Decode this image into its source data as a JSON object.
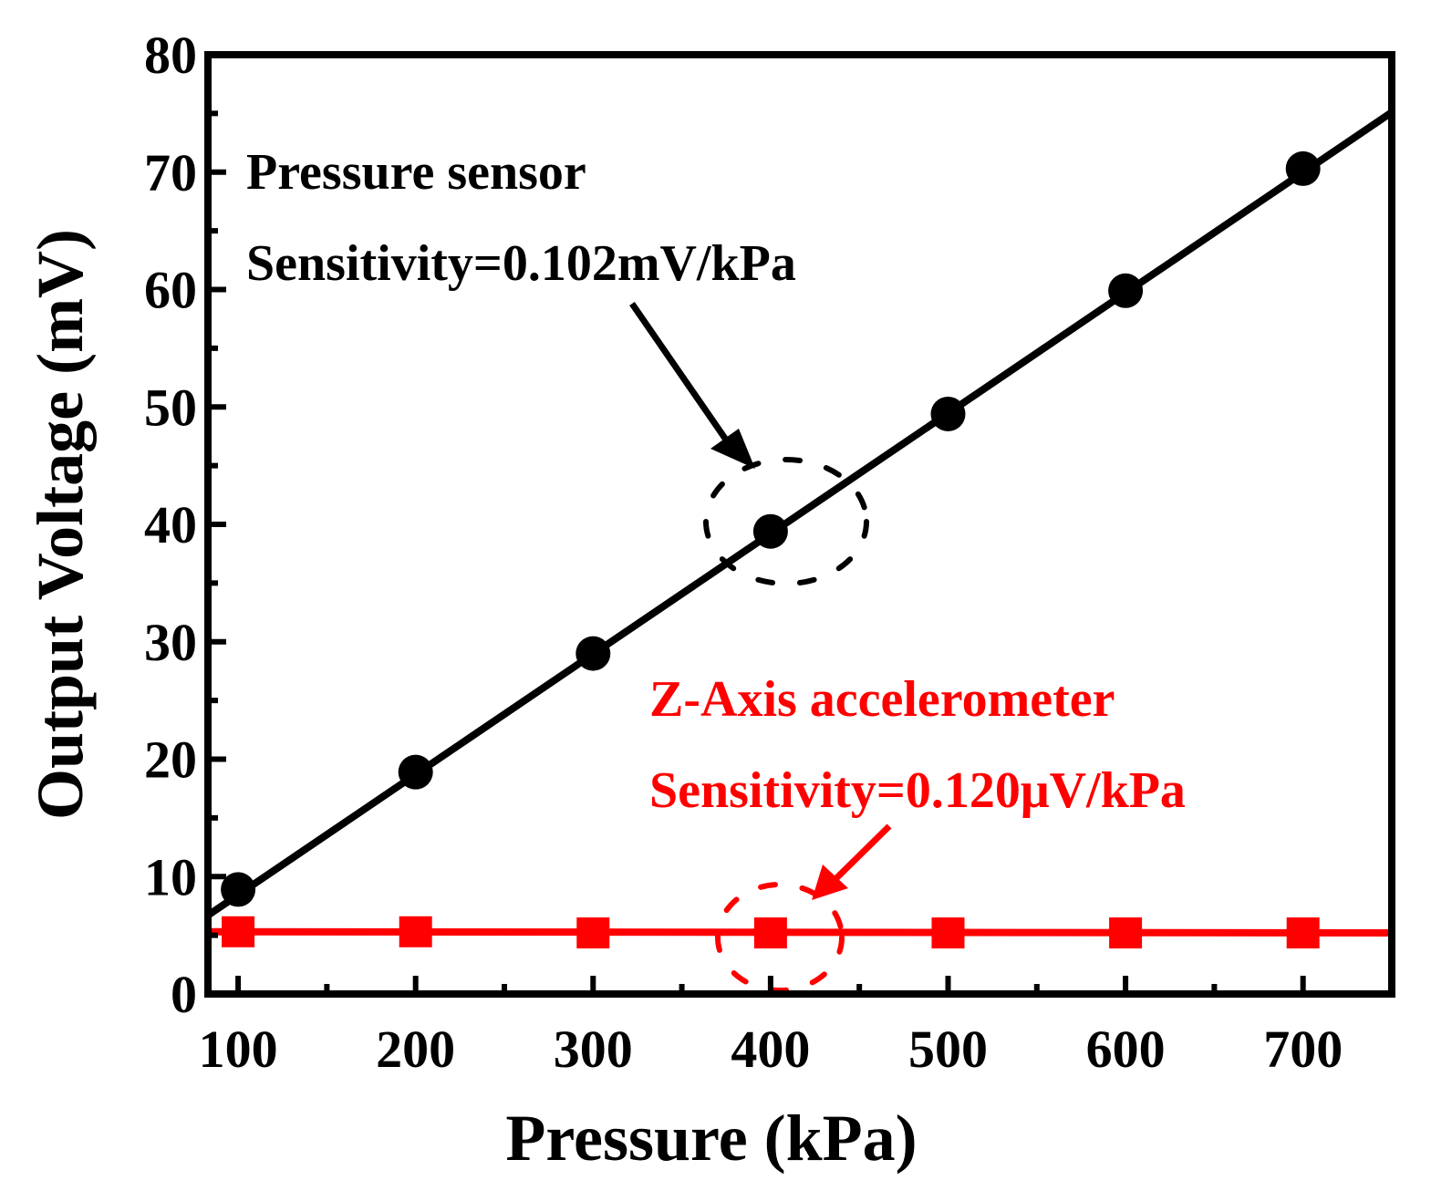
{
  "chart_data": {
    "type": "line",
    "title": "",
    "xlabel": "Pressure (kPa)",
    "ylabel": "Output Voltage (mV)",
    "xlim": [
      83,
      750
    ],
    "ylim": [
      0,
      80
    ],
    "x_ticks": [
      100,
      200,
      300,
      400,
      500,
      600,
      700
    ],
    "x_tick_labels": [
      "100",
      "200",
      "300",
      "400",
      "500",
      "600",
      "700"
    ],
    "y_ticks": [
      0,
      10,
      20,
      30,
      40,
      50,
      60,
      70,
      80
    ],
    "y_tick_labels": [
      "0",
      "10",
      "20",
      "30",
      "40",
      "50",
      "60",
      "70",
      "80"
    ],
    "grid": false,
    "series": [
      {
        "name": "Pressure sensor",
        "color": "#000000",
        "marker": "circle",
        "x": [
          100,
          200,
          300,
          400,
          500,
          600,
          700
        ],
        "y": [
          8.9,
          18.9,
          29.0,
          39.4,
          49.4,
          59.9,
          70.3
        ],
        "fit_line": {
          "x": [
            83,
            750
          ],
          "y": [
            6.7,
            75.1
          ]
        },
        "annotation_title": "Pressure sensor",
        "annotation_sensitivity": "Sensitivity=0.102mV/kPa"
      },
      {
        "name": "Z-Axis accelerometer",
        "color": "#ff0000",
        "marker": "square",
        "x": [
          100,
          200,
          300,
          400,
          500,
          600,
          700
        ],
        "y": [
          5.3,
          5.3,
          5.2,
          5.2,
          5.2,
          5.2,
          5.2
        ],
        "fit_line": {
          "x": [
            83,
            750
          ],
          "y": [
            5.3,
            5.2
          ]
        },
        "annotation_title": "Z-Axis accelerometer",
        "annotation_sensitivity": "Sensitivity=0.120μV/kPa"
      }
    ]
  }
}
